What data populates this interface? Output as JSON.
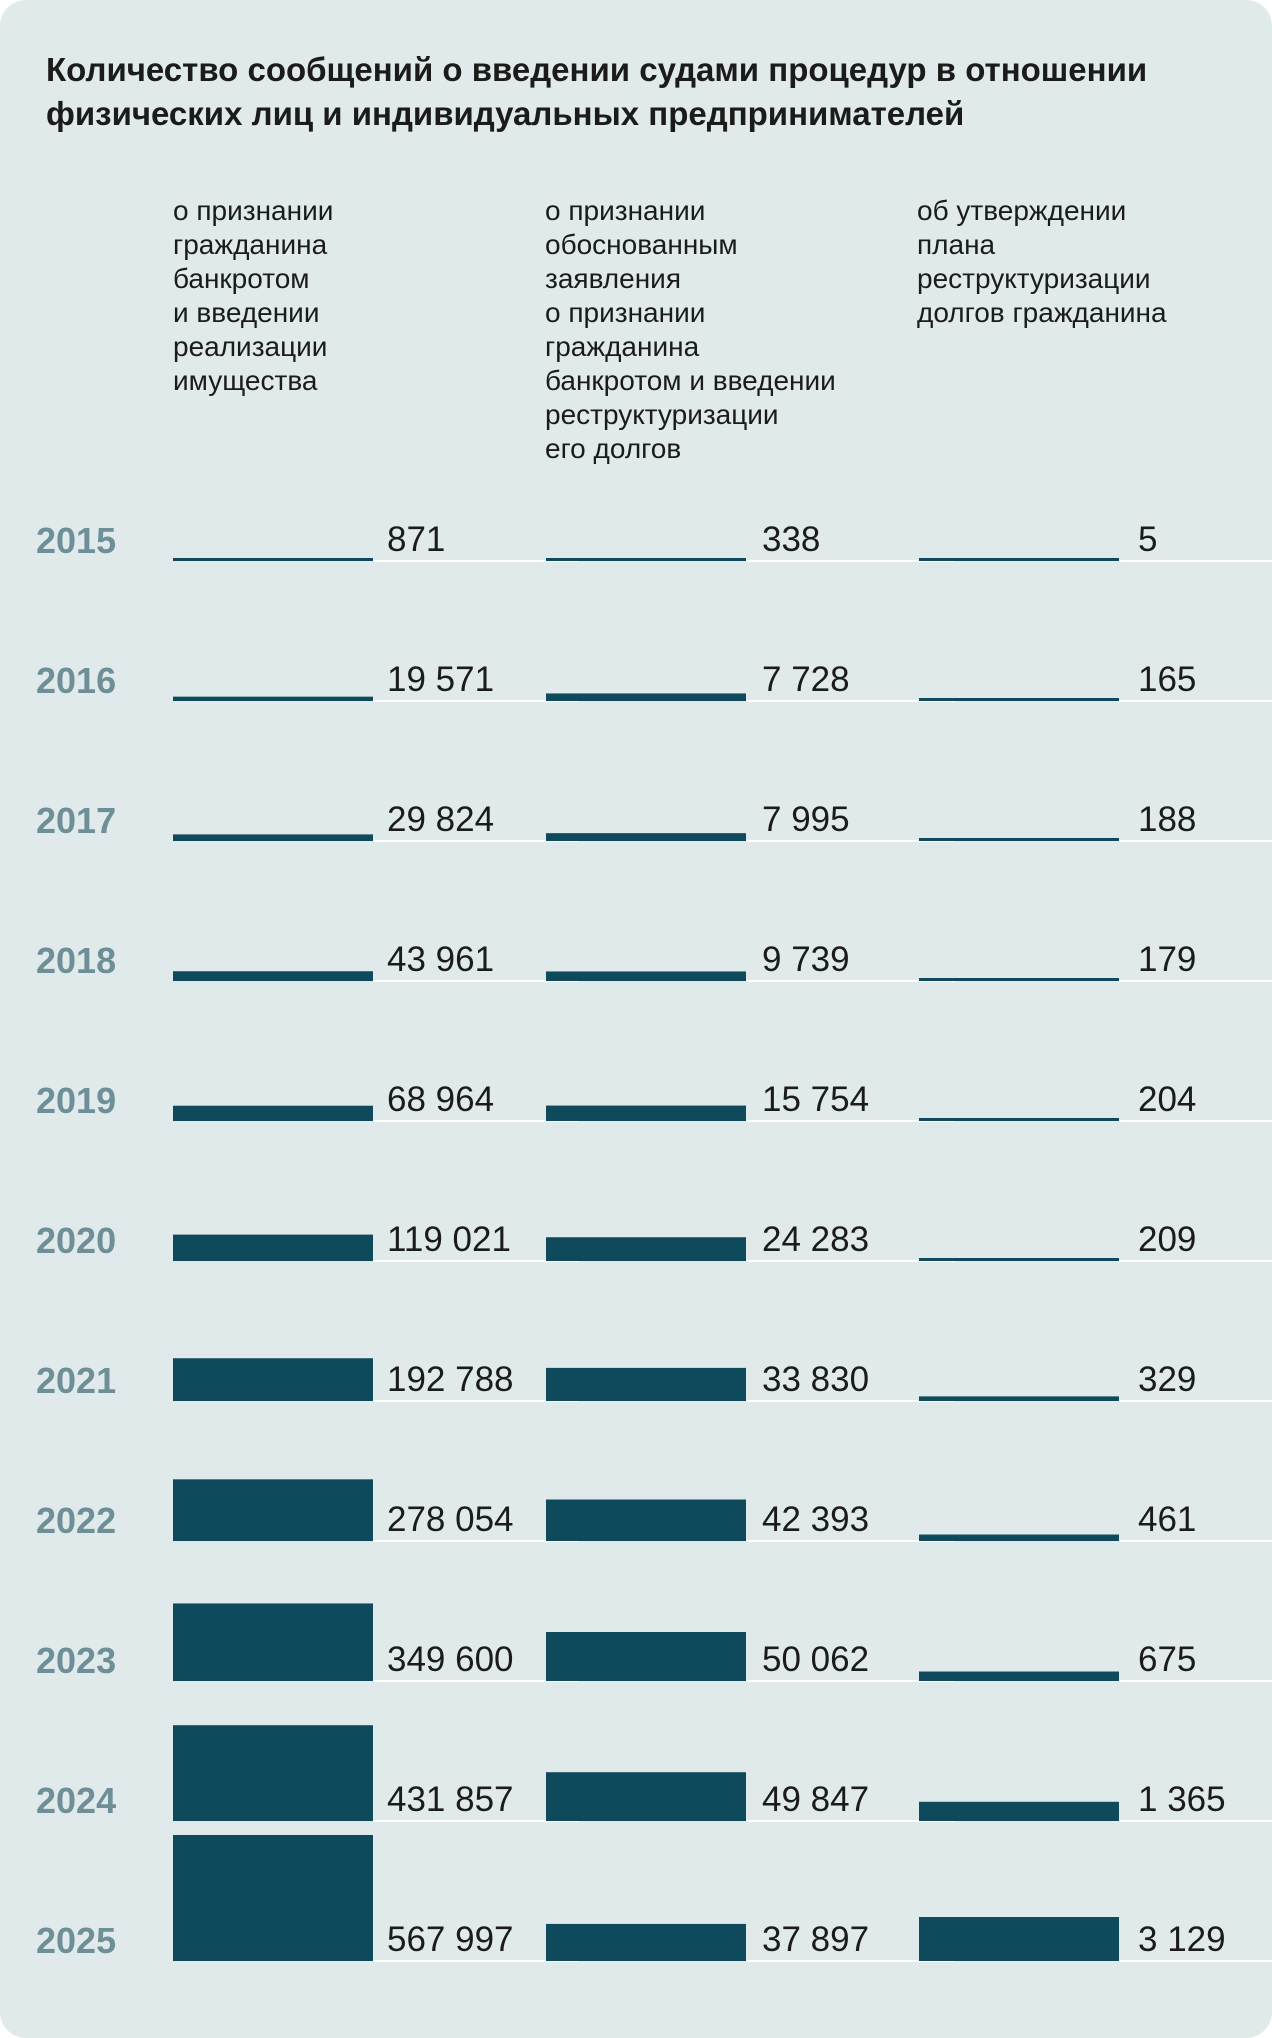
{
  "chart_data": {
    "type": "bar",
    "title": "Количество сообщений о введении судами процедур в отношении физических лиц и индивидуальных предпринимателей",
    "categories": [
      "2015",
      "2016",
      "2017",
      "2018",
      "2019",
      "2020",
      "2021",
      "2022",
      "2023",
      "2024",
      "2025"
    ],
    "series": [
      {
        "name": "о признании\nгражданина\nбанкротом\nи  введении\nреализации\nимущества",
        "values": [
          871,
          19571,
          29824,
          43961,
          68964,
          119021,
          192788,
          278054,
          349600,
          431857,
          567997
        ],
        "labels": [
          "871",
          "19 571",
          "29 824",
          "43 961",
          "68 964",
          "119 021",
          "192 788",
          "278 054",
          "349 600",
          "431 857",
          "567 997"
        ]
      },
      {
        "name": "о признании\nобоснованным\nзаявления\nо  признании\nгражданина\nбанкротом и введении\nреструктуризации\nего долгов",
        "values": [
          338,
          7728,
          7995,
          9739,
          15754,
          24283,
          33830,
          42393,
          50062,
          49847,
          37897
        ],
        "labels": [
          "338",
          "7 728",
          "7 995",
          "9 739",
          "15 754",
          "24 283",
          "33 830",
          "42 393",
          "50 062",
          "49 847",
          "37 897"
        ]
      },
      {
        "name": "об утверждении\nплана\nреструктуризации\nдолгов гражданина",
        "values": [
          5,
          165,
          188,
          179,
          204,
          209,
          329,
          461,
          675,
          1365,
          3129
        ],
        "labels": [
          "5",
          "165",
          "188",
          "179",
          "204",
          "209",
          "329",
          "461",
          "675",
          "1 365",
          "3 129"
        ]
      }
    ],
    "colors": {
      "bar": "#0f4a5c",
      "baseline": "#ffffff",
      "year": "#6e8f98",
      "background": "#e0eaea"
    },
    "grid": false,
    "legend": "column headers top"
  }
}
